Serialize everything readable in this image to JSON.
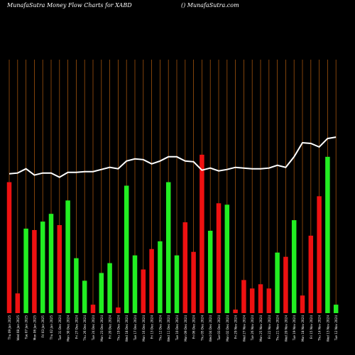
{
  "header": {
    "left": "MunafaSutra  Money Flow  Charts for XABD",
    "right": "() MunafaSutra.com"
  },
  "colors": {
    "background": "#000000",
    "bar_up": "#22ee22",
    "bar_down": "#ee1111",
    "line": "#ffffff",
    "grid": "#a0520d",
    "text": "#ffffff"
  },
  "chart_data": {
    "type": "bar",
    "categories": [
      "Thu 09 Jan 2025",
      "Wed 08 Jan 2025",
      "Tue 07 Jan 2025",
      "Mon 06 Jan 2025",
      "Fri 03 Jan 2025",
      "Thu 02 Jan 2025",
      "Tue 31 Dec 2024",
      "Mon 30 Dec 2024",
      "Fri 27 Dec 2024",
      "Thu 26 Dec 2024",
      "Tue 24 Dec 2024",
      "Mon 23 Dec 2024",
      "Fri 20 Dec 2024",
      "Thu 19 Dec 2024",
      "Wed 18 Dec 2024",
      "Tue 17 Dec 2024",
      "Mon 16 Dec 2024",
      "Fri 13 Dec 2024",
      "Thu 12 Dec 2024",
      "Wed 11 Dec 2024",
      "Tue 10 Dec 2024",
      "Mon 09 Dec 2024",
      "Fri 06 Dec 2024",
      "Thu 05 Dec 2024",
      "Wed 04 Dec 2024",
      "Tue 03 Dec 2024",
      "Mon 02 Dec 2024",
      "Fri 29 Nov 2024",
      "Wed 27 Nov 2024",
      "Tue 26 Nov 2024",
      "Mon 25 Nov 2024",
      "Fri 22 Nov 2024",
      "Thu 21 Nov 2024",
      "Wed 20 Nov 2024",
      "Tue 19 Nov 2024",
      "Mon 18 Nov 2024",
      "Fri 15 Nov 2024",
      "Thu 14 Nov 2024",
      "Wed 13 Nov 2024",
      "Tue 12 Nov 2024"
    ],
    "x_labels": [
      "Thu 09 Jan 2025",
      "Wed 08 Jan 2025",
      "Tue 07 Jan 2025",
      "Mon 06 Jan 2025",
      "Fri 03 Jan 2025",
      "Thu 02 Jan 2025",
      "Tue 31 Dec 2024",
      "Mon 30 Dec 2024",
      "Fri 27 Dec 2024",
      "Thu 26 Dec 2024",
      "Tue 24 Dec 2024",
      "Mon 23 Dec 2024",
      "Fri 20 Dec 2024",
      "Thu 19 Dec 2024",
      "Wed 18 Dec 2024",
      "Tue 17 Dec 2024",
      "Mon 16 Dec 2024",
      "Fri 13 Dec 2024",
      "Thu 12 Dec 2024",
      "Wed 11 Dec 2024",
      "Tue 10 Dec 2024",
      "Mon 09 Dec 2024",
      "Fri 06 Dec 2024",
      "Thu 05 Dec 2024",
      "Wed 04 Dec 2024",
      "Tue 03 Dec 2024",
      "Mon 02 Dec 2024",
      "Fri 29 Nov 2024",
      "Wed 27 Nov 2024",
      "Tue 26 Nov 2024",
      "Mon 25 Nov 2024",
      "Fri 22 Nov 2024",
      "Thu 21 Nov 2024",
      "Wed 20 Nov 2024",
      "Tue 19 Nov 2024",
      "Mon 18 Nov 2024",
      "Fri 15 Nov 2024",
      "Thu 14 Nov 2024",
      "Wed 13 Nov 2024",
      "Tue 12 Nov 2024"
    ],
    "bars": [
      {
        "value": 186,
        "color": "red"
      },
      {
        "value": 28,
        "color": "red"
      },
      {
        "value": 120,
        "color": "green"
      },
      {
        "value": 118,
        "color": "red"
      },
      {
        "value": 130,
        "color": "green"
      },
      {
        "value": 141,
        "color": "green"
      },
      {
        "value": 125,
        "color": "red"
      },
      {
        "value": 160,
        "color": "green"
      },
      {
        "value": 78,
        "color": "green"
      },
      {
        "value": 46,
        "color": "green"
      },
      {
        "value": 12,
        "color": "red"
      },
      {
        "value": 57,
        "color": "green"
      },
      {
        "value": 71,
        "color": "green"
      },
      {
        "value": 8,
        "color": "red"
      },
      {
        "value": 181,
        "color": "green"
      },
      {
        "value": 82,
        "color": "green"
      },
      {
        "value": 62,
        "color": "red"
      },
      {
        "value": 91,
        "color": "red"
      },
      {
        "value": 102,
        "color": "green"
      },
      {
        "value": 186,
        "color": "green"
      },
      {
        "value": 82,
        "color": "green"
      },
      {
        "value": 129,
        "color": "red"
      },
      {
        "value": 87,
        "color": "red"
      },
      {
        "value": 225,
        "color": "red"
      },
      {
        "value": 117,
        "color": "green"
      },
      {
        "value": 156,
        "color": "red"
      },
      {
        "value": 154,
        "color": "green"
      },
      {
        "value": 5,
        "color": "red"
      },
      {
        "value": 47,
        "color": "red"
      },
      {
        "value": 35,
        "color": "red"
      },
      {
        "value": 41,
        "color": "red"
      },
      {
        "value": 35,
        "color": "red"
      },
      {
        "value": 86,
        "color": "green"
      },
      {
        "value": 80,
        "color": "red"
      },
      {
        "value": 132,
        "color": "green"
      },
      {
        "value": 25,
        "color": "red"
      },
      {
        "value": 110,
        "color": "red"
      },
      {
        "value": 166,
        "color": "red"
      },
      {
        "value": 222,
        "color": "green"
      },
      {
        "value": 12,
        "color": "green"
      }
    ],
    "line_values": [
      198,
      199,
      205,
      196,
      199,
      199,
      193,
      200,
      200,
      201,
      201,
      204,
      207,
      205,
      216,
      219,
      218,
      212,
      216,
      222,
      222,
      216,
      215,
      203,
      206,
      202,
      204,
      207,
      206,
      205,
      205,
      206,
      210,
      207,
      222,
      242,
      241,
      236,
      248,
      250
    ],
    "y_range": [
      0,
      360
    ],
    "grid": "vertical",
    "title": "",
    "xlabel": "",
    "ylabel": ""
  }
}
